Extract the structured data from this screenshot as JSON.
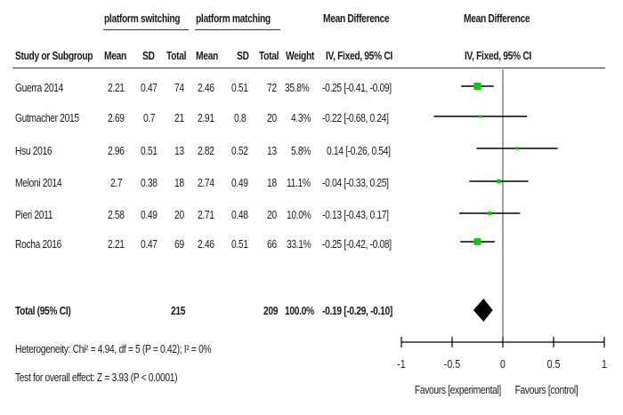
{
  "chart_data": {
    "type": "forest",
    "header": {
      "group_experimental": "platform switching",
      "group_control": "platform matching",
      "effect_col_title": "Mean Difference",
      "effect_col_method": "IV, Fixed, 95% CI",
      "plot_title": "Mean Difference",
      "plot_method": "IV, Fixed, 95% CI",
      "columns": [
        "Study or Subgroup",
        "Mean",
        "SD",
        "Total",
        "Mean",
        "SD",
        "Total",
        "Weight"
      ]
    },
    "studies": [
      {
        "name": "Guerra 2014",
        "mean_e": "2.21",
        "sd_e": "0.47",
        "n_e": "74",
        "mean_c": "2.46",
        "sd_c": "0.51",
        "n_c": "72",
        "weight": "35.8%",
        "md_text": "-0.25 [-0.41, -0.09]",
        "md": -0.25,
        "lo": -0.41,
        "hi": -0.09,
        "w": 35.8
      },
      {
        "name": "Gutmacher 2015",
        "mean_e": "2.69",
        "sd_e": "0.7",
        "n_e": "21",
        "mean_c": "2.91",
        "sd_c": "0.8",
        "n_c": "20",
        "weight": "4.3%",
        "md_text": "-0.22 [-0.68, 0.24]",
        "md": -0.22,
        "lo": -0.68,
        "hi": 0.24,
        "w": 4.3
      },
      {
        "name": "Hsu 2016",
        "mean_e": "2.96",
        "sd_e": "0.51",
        "n_e": "13",
        "mean_c": "2.82",
        "sd_c": "0.52",
        "n_c": "13",
        "weight": "5.8%",
        "md_text": "0.14 [-0.26, 0.54]",
        "md": 0.14,
        "lo": -0.26,
        "hi": 0.54,
        "w": 5.8
      },
      {
        "name": "Meloni 2014",
        "mean_e": "2.7",
        "sd_e": "0.38",
        "n_e": "18",
        "mean_c": "2.74",
        "sd_c": "0.49",
        "n_c": "18",
        "weight": "11.1%",
        "md_text": "-0.04 [-0.33, 0.25]",
        "md": -0.04,
        "lo": -0.33,
        "hi": 0.25,
        "w": 11.1
      },
      {
        "name": "Pieri 2011",
        "mean_e": "2.58",
        "sd_e": "0.49",
        "n_e": "20",
        "mean_c": "2.71",
        "sd_c": "0.48",
        "n_c": "20",
        "weight": "10.0%",
        "md_text": "-0.13 [-0.43, 0.17]",
        "md": -0.13,
        "lo": -0.43,
        "hi": 0.17,
        "w": 10.0
      },
      {
        "name": "Rocha 2016",
        "mean_e": "2.21",
        "sd_e": "0.47",
        "n_e": "69",
        "mean_c": "2.46",
        "sd_c": "0.51",
        "n_c": "66",
        "weight": "33.1%",
        "md_text": "-0.25 [-0.42, -0.08]",
        "md": -0.25,
        "lo": -0.42,
        "hi": -0.08,
        "w": 33.1
      }
    ],
    "total": {
      "label": "Total (95% CI)",
      "n_e": "215",
      "n_c": "209",
      "weight": "100.0%",
      "md_text": "-0.19 [-0.29, -0.10]",
      "md": -0.19,
      "lo": -0.29,
      "hi": -0.1
    },
    "heterogeneity": "Heterogeneity: Chi² = 4.94, df = 5 (P = 0.42); I² = 0%",
    "overall_effect": "Test for overall effect: Z = 3.93 (P < 0.0001)",
    "xaxis": {
      "ticks": [
        -1,
        -0.5,
        0,
        0.5,
        1
      ],
      "tick_labels": [
        "-1",
        "-0.5",
        "0",
        "0.5",
        "1"
      ],
      "xlim": [
        -1,
        1
      ]
    },
    "favours_left": "Favours [experimental]",
    "favours_right": "Favours [control]",
    "marker_color": "#00cc00"
  }
}
